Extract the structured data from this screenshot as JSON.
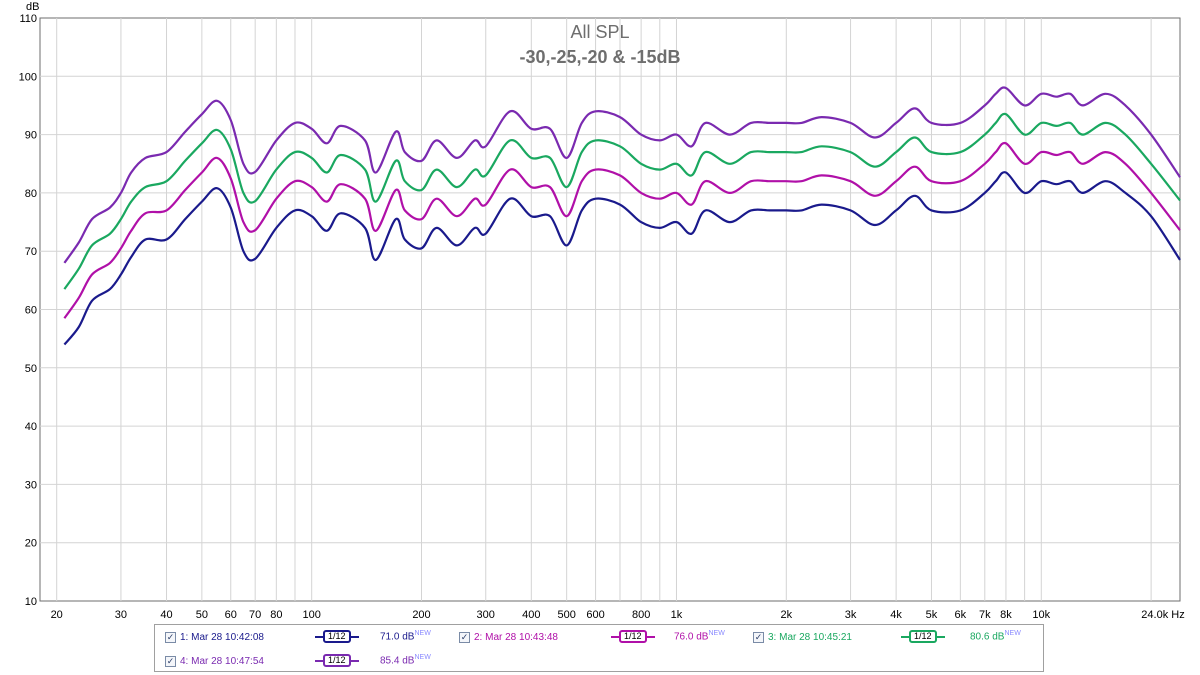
{
  "chart_data": {
    "type": "line",
    "title": "All SPL",
    "subtitle": "-30,-25,-20 & -15dB",
    "ylabel": "dB",
    "xlabel": "Hz",
    "xscale": "log",
    "xlim": [
      18,
      24000
    ],
    "ylim": [
      10,
      110
    ],
    "grid": true,
    "x_tick_labels": [
      "20",
      "30",
      "40",
      "50",
      "60",
      "70",
      "80",
      "100",
      "200",
      "300",
      "400",
      "500",
      "600",
      "800",
      "1k",
      "2k",
      "3k",
      "4k",
      "5k",
      "6k",
      "7k",
      "8k",
      "10k",
      "24.0k Hz"
    ],
    "y_tick_labels": [
      "10",
      "20",
      "30",
      "40",
      "50",
      "60",
      "70",
      "80",
      "90",
      "100",
      "110"
    ],
    "x": [
      21,
      23,
      25,
      28,
      30,
      32,
      35,
      40,
      45,
      50,
      55,
      60,
      65,
      70,
      80,
      90,
      100,
      110,
      120,
      140,
      150,
      170,
      180,
      200,
      220,
      250,
      280,
      300,
      350,
      400,
      450,
      500,
      550,
      600,
      700,
      800,
      900,
      1000,
      1100,
      1200,
      1400,
      1600,
      1800,
      2000,
      2200,
      2500,
      3000,
      3500,
      4000,
      4500,
      5000,
      6000,
      7000,
      7500,
      8000,
      9000,
      10000,
      11000,
      12000,
      13000,
      15000,
      17000,
      20000,
      24000
    ],
    "series": [
      {
        "name": "1: Mar 28 10:42:08",
        "color": "#1a1a8c",
        "level": "71.0 dB",
        "values": [
          54,
          57,
          61.5,
          63.5,
          66,
          69,
          72,
          72,
          75.5,
          78.5,
          80.8,
          77.5,
          70,
          68.7,
          74,
          77,
          76,
          73.5,
          76.5,
          74,
          68.5,
          75.5,
          72,
          70.5,
          74,
          71,
          74,
          73,
          79,
          76,
          76,
          71,
          77,
          79,
          78,
          75,
          74,
          75,
          73,
          77,
          75,
          77,
          77,
          77,
          77,
          78,
          77,
          74.5,
          77,
          79.5,
          77,
          77,
          80,
          82,
          83.5,
          80,
          82,
          81.5,
          82,
          80,
          82,
          80,
          76,
          68.5
        ]
      },
      {
        "name": "2: Mar 28 10:43:48",
        "color": "#b010a8",
        "level": "76.0 dB",
        "values": [
          58.5,
          62,
          66,
          68,
          70.5,
          73.5,
          76.5,
          77,
          80.5,
          83.5,
          86,
          82.5,
          75,
          73.6,
          79,
          82,
          81,
          78.5,
          81.5,
          79,
          73.5,
          80.5,
          77,
          75.5,
          79,
          76,
          79,
          78,
          84,
          81,
          81,
          76,
          82,
          84,
          83,
          80,
          79,
          80,
          78,
          82,
          80,
          82,
          82,
          82,
          82,
          83,
          82,
          79.5,
          82,
          84.5,
          82,
          82,
          85,
          87,
          88.5,
          85,
          87,
          86.5,
          87,
          85,
          87,
          85,
          80,
          73.6
        ]
      },
      {
        "name": "3: Mar 28 10:45:21",
        "color": "#1aa860",
        "level": "80.6 dB",
        "values": [
          63.5,
          67,
          71,
          73,
          75.5,
          78.5,
          81,
          82,
          85.5,
          88.5,
          90.8,
          87.5,
          80,
          78.6,
          84,
          87,
          86,
          83.5,
          86.5,
          84,
          78.5,
          85.5,
          82,
          80.5,
          84,
          81,
          84,
          83,
          89,
          86,
          86,
          81,
          87,
          89,
          88,
          85,
          84,
          85,
          83,
          87,
          85,
          87,
          87,
          87,
          87,
          88,
          87,
          84.5,
          87,
          89.5,
          87,
          87,
          90,
          92,
          93.5,
          90,
          92,
          91.5,
          92,
          90,
          92,
          90,
          85,
          78.7
        ]
      },
      {
        "name": "4: Mar 28 10:47:54",
        "color": "#7a2ab0",
        "level": "85.4 dB",
        "values": [
          68,
          71.5,
          75.5,
          77.5,
          80,
          83.5,
          86,
          87,
          90.5,
          93.5,
          95.8,
          92.5,
          85,
          83.6,
          89,
          92,
          91,
          88.5,
          91.5,
          89,
          83.5,
          90.5,
          87,
          85.5,
          89,
          86,
          89,
          88,
          94,
          91,
          91,
          86,
          92,
          94,
          93,
          90,
          89,
          90,
          88,
          92,
          90,
          92,
          92,
          92,
          92,
          93,
          92,
          89.5,
          92,
          94.5,
          92,
          92,
          95,
          97,
          98,
          95,
          97,
          96.5,
          97,
          95,
          97,
          95,
          90,
          82.7
        ]
      }
    ]
  },
  "legend": {
    "smoothing": "1/12",
    "new_tag": "NEW",
    "checkmark": "✓"
  }
}
